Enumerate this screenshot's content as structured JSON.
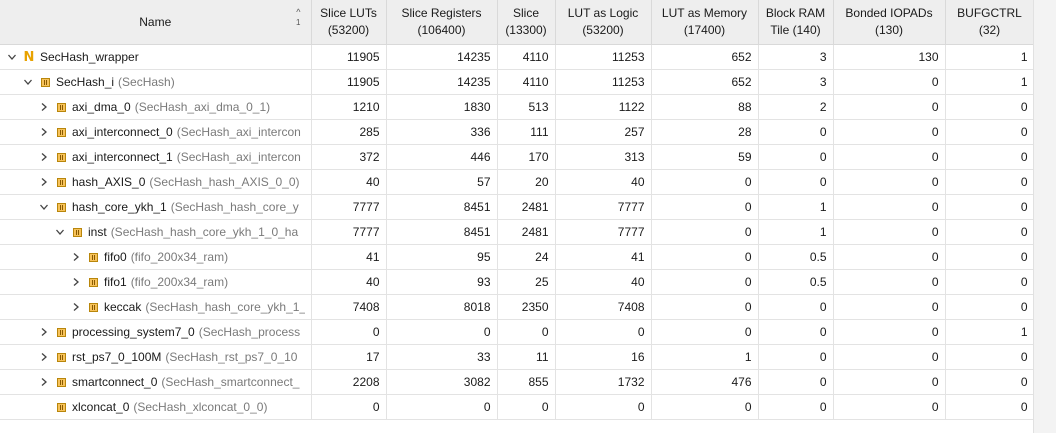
{
  "headers": {
    "name": "Name",
    "sort_glyph": "^",
    "sort_index": "1",
    "cols": [
      {
        "line1": "Slice LUTs",
        "line2": "(53200)"
      },
      {
        "line1": "Slice Registers",
        "line2": "(106400)"
      },
      {
        "line1": "Slice",
        "line2": "(13300)"
      },
      {
        "line1": "LUT as Logic",
        "line2": "(53200)"
      },
      {
        "line1": "LUT as Memory",
        "line2": "(17400)"
      },
      {
        "line1": "Block RAM",
        "line2": "Tile (140)"
      },
      {
        "line1": "Bonded IOPADs",
        "line2": "(130)"
      },
      {
        "line1": "BUFGCTRL",
        "line2": "(32)"
      }
    ]
  },
  "rows": [
    {
      "depth": 0,
      "toggle": "expanded",
      "icon": "N",
      "inst": "SecHash_wrapper",
      "module": "",
      "values": [
        "11905",
        "14235",
        "4110",
        "11253",
        "652",
        "3",
        "130",
        "1"
      ]
    },
    {
      "depth": 1,
      "toggle": "expanded",
      "icon": "module",
      "inst": "SecHash_i",
      "module": "(SecHash)",
      "values": [
        "11905",
        "14235",
        "4110",
        "11253",
        "652",
        "3",
        "0",
        "1"
      ]
    },
    {
      "depth": 2,
      "toggle": "collapsed",
      "icon": "module",
      "inst": "axi_dma_0",
      "module": "(SecHash_axi_dma_0_1)",
      "values": [
        "1210",
        "1830",
        "513",
        "1122",
        "88",
        "2",
        "0",
        "0"
      ]
    },
    {
      "depth": 2,
      "toggle": "collapsed",
      "icon": "module",
      "inst": "axi_interconnect_0",
      "module": "(SecHash_axi_intercon",
      "values": [
        "285",
        "336",
        "111",
        "257",
        "28",
        "0",
        "0",
        "0"
      ]
    },
    {
      "depth": 2,
      "toggle": "collapsed",
      "icon": "module",
      "inst": "axi_interconnect_1",
      "module": "(SecHash_axi_intercon",
      "values": [
        "372",
        "446",
        "170",
        "313",
        "59",
        "0",
        "0",
        "0"
      ]
    },
    {
      "depth": 2,
      "toggle": "collapsed",
      "icon": "module",
      "inst": "hash_AXIS_0",
      "module": "(SecHash_hash_AXIS_0_0)",
      "values": [
        "40",
        "57",
        "20",
        "40",
        "0",
        "0",
        "0",
        "0"
      ]
    },
    {
      "depth": 2,
      "toggle": "expanded",
      "icon": "module",
      "inst": "hash_core_ykh_1",
      "module": "(SecHash_hash_core_y",
      "values": [
        "7777",
        "8451",
        "2481",
        "7777",
        "0",
        "1",
        "0",
        "0"
      ]
    },
    {
      "depth": 3,
      "toggle": "expanded",
      "icon": "module",
      "inst": "inst",
      "module": "(SecHash_hash_core_ykh_1_0_ha",
      "values": [
        "7777",
        "8451",
        "2481",
        "7777",
        "0",
        "1",
        "0",
        "0"
      ]
    },
    {
      "depth": 4,
      "toggle": "collapsed",
      "icon": "module",
      "inst": "fifo0",
      "module": "(fifo_200x34_ram)",
      "values": [
        "41",
        "95",
        "24",
        "41",
        "0",
        "0.5",
        "0",
        "0"
      ]
    },
    {
      "depth": 4,
      "toggle": "collapsed",
      "icon": "module",
      "inst": "fifo1",
      "module": "(fifo_200x34_ram)",
      "values": [
        "40",
        "93",
        "25",
        "40",
        "0",
        "0.5",
        "0",
        "0"
      ]
    },
    {
      "depth": 4,
      "toggle": "collapsed",
      "icon": "module",
      "inst": "keccak",
      "module": "(SecHash_hash_core_ykh_1_",
      "values": [
        "7408",
        "8018",
        "2350",
        "7408",
        "0",
        "0",
        "0",
        "0"
      ]
    },
    {
      "depth": 2,
      "toggle": "collapsed",
      "icon": "module",
      "inst": "processing_system7_0",
      "module": "(SecHash_process",
      "values": [
        "0",
        "0",
        "0",
        "0",
        "0",
        "0",
        "0",
        "1"
      ]
    },
    {
      "depth": 2,
      "toggle": "collapsed",
      "icon": "module",
      "inst": "rst_ps7_0_100M",
      "module": "(SecHash_rst_ps7_0_10",
      "values": [
        "17",
        "33",
        "11",
        "16",
        "1",
        "0",
        "0",
        "0"
      ]
    },
    {
      "depth": 2,
      "toggle": "collapsed",
      "icon": "module",
      "inst": "smartconnect_0",
      "module": "(SecHash_smartconnect_",
      "values": [
        "2208",
        "3082",
        "855",
        "1732",
        "476",
        "0",
        "0",
        "0"
      ]
    },
    {
      "depth": 2,
      "toggle": "none",
      "icon": "module",
      "inst": "xlconcat_0",
      "module": "(SecHash_xlconcat_0_0)",
      "values": [
        "0",
        "0",
        "0",
        "0",
        "0",
        "0",
        "0",
        "0"
      ]
    }
  ]
}
